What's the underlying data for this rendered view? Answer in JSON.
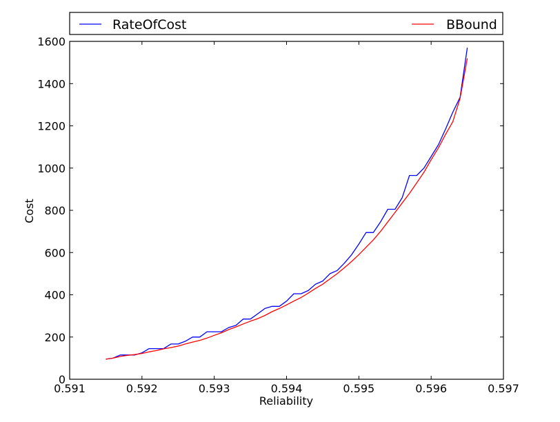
{
  "chart_data": {
    "type": "line",
    "xlabel": "Reliability",
    "ylabel": "Cost",
    "xlim": [
      0.591,
      0.597
    ],
    "ylim": [
      0,
      1600
    ],
    "xticks": [
      "0.591",
      "0.592",
      "0.593",
      "0.594",
      "0.595",
      "0.596",
      "0.597"
    ],
    "yticks": [
      "0",
      "200",
      "400",
      "600",
      "800",
      "1000",
      "1200",
      "1400",
      "1600"
    ],
    "legend_placement": "top, above plot",
    "grid": false,
    "series": [
      {
        "name": "RateOfCost",
        "color": "#0000ff",
        "x": [
          0.5915,
          0.5916,
          0.5917,
          0.5918,
          0.5919,
          0.592,
          0.5921,
          0.5922,
          0.5923,
          0.5924,
          0.5925,
          0.5926,
          0.5927,
          0.5928,
          0.5929,
          0.593,
          0.5931,
          0.5932,
          0.5933,
          0.5934,
          0.5935,
          0.5936,
          0.5937,
          0.5938,
          0.5939,
          0.594,
          0.5941,
          0.5942,
          0.5943,
          0.5944,
          0.5945,
          0.5946,
          0.5947,
          0.5948,
          0.5949,
          0.595,
          0.5951,
          0.5952,
          0.5953,
          0.5954,
          0.5955,
          0.5956,
          0.5957,
          0.5958,
          0.5959,
          0.596,
          0.5961,
          0.5962,
          0.5963,
          0.5964,
          0.5965
        ],
        "y": [
          95,
          100,
          115,
          115,
          115,
          125,
          145,
          145,
          145,
          167,
          167,
          180,
          200,
          200,
          225,
          225,
          225,
          245,
          255,
          285,
          285,
          310,
          335,
          345,
          345,
          370,
          405,
          405,
          420,
          450,
          465,
          500,
          515,
          550,
          590,
          640,
          695,
          695,
          745,
          805,
          805,
          860,
          965,
          965,
          1000,
          1055,
          1110,
          1185,
          1265,
          1335,
          1570
        ]
      },
      {
        "name": "BBound",
        "color": "#ff0000",
        "x": [
          0.5915,
          0.5916,
          0.5917,
          0.5918,
          0.5919,
          0.592,
          0.5921,
          0.5922,
          0.5923,
          0.5924,
          0.5925,
          0.5926,
          0.5927,
          0.5928,
          0.5929,
          0.593,
          0.5931,
          0.5932,
          0.5933,
          0.5934,
          0.5935,
          0.5936,
          0.5937,
          0.5938,
          0.5939,
          0.594,
          0.5941,
          0.5942,
          0.5943,
          0.5944,
          0.5945,
          0.5946,
          0.5947,
          0.5948,
          0.5949,
          0.595,
          0.5951,
          0.5952,
          0.5953,
          0.5954,
          0.5955,
          0.5956,
          0.5957,
          0.5958,
          0.5959,
          0.596,
          0.5961,
          0.5962,
          0.5963,
          0.5964,
          0.5965
        ],
        "y": [
          95,
          100,
          108,
          113,
          117,
          122,
          130,
          136,
          144,
          150,
          157,
          167,
          176,
          184,
          195,
          208,
          220,
          235,
          248,
          262,
          275,
          287,
          302,
          320,
          335,
          352,
          370,
          387,
          408,
          430,
          450,
          475,
          500,
          528,
          558,
          590,
          625,
          660,
          700,
          745,
          790,
          835,
          880,
          930,
          980,
          1040,
          1095,
          1160,
          1220,
          1330,
          1520
        ]
      }
    ]
  }
}
